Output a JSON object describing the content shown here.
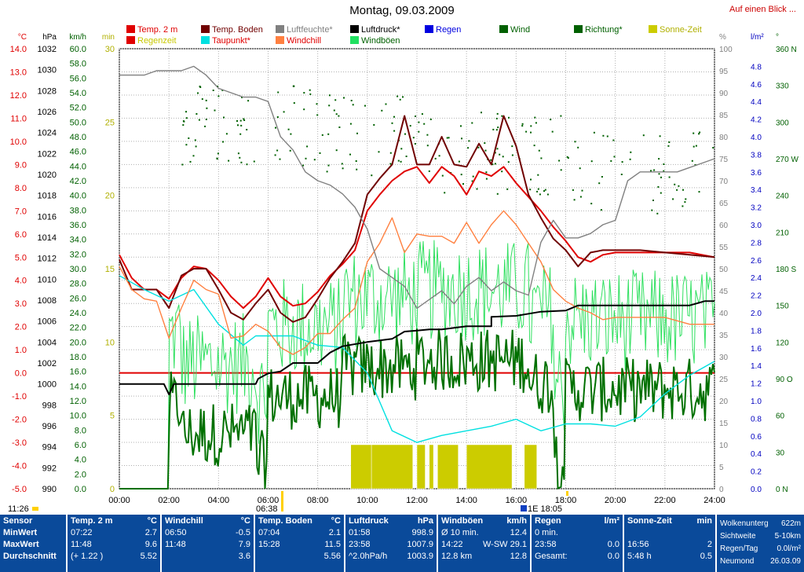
{
  "header": {
    "title": "Montag, 09.03.2009",
    "link": "Auf einen Blick ..."
  },
  "legend": [
    {
      "label": "Temp. 2 m",
      "color": "#e00000",
      "text_color": "#e00000"
    },
    {
      "label": "Temp. Boden",
      "color": "#700000",
      "text_color": "#700000"
    },
    {
      "label": "Luftfeuchte*",
      "color": "#808080",
      "text_color": "#808080"
    },
    {
      "label": "Luftdruck*",
      "color": "#000000",
      "text_color": "#000000"
    },
    {
      "label": "Regen",
      "color": "#0000e0",
      "text_color": "#0000e0"
    },
    {
      "label": "Wind",
      "color": "#006000",
      "text_color": "#006000"
    },
    {
      "label": "Richtung*",
      "color": "#006000",
      "text_color": "#006000"
    },
    {
      "label": "Sonne-Zeit",
      "color": "#cccc00",
      "text_color": "#b0b000"
    },
    {
      "label": "Regenzeit",
      "color": "#e00000",
      "text_color": "#c8c800"
    },
    {
      "label": "Taupunkt*",
      "color": "#00e0e0",
      "text_color": "#e00000"
    },
    {
      "label": "Windchill",
      "color": "#ff8040",
      "text_color": "#e00000"
    },
    {
      "label": "Windböen",
      "color": "#20e060",
      "text_color": "#006000"
    }
  ],
  "chart_data": {
    "type": "line",
    "x_range": [
      "00:00",
      "24:00"
    ],
    "x_ticks": [
      "00:00",
      "02:00",
      "04:00",
      "06:00",
      "08:00",
      "10:00",
      "12:00",
      "14:00",
      "16:00",
      "18:00",
      "20:00",
      "22:00",
      "24:00"
    ],
    "axes": {
      "temp": {
        "unit": "°C",
        "range": [
          -5.0,
          14.0
        ],
        "ticks": [
          "14.0",
          "13.0",
          "12.0",
          "11.0",
          "10.0",
          "9.0",
          "8.0",
          "7.0",
          "6.0",
          "5.0",
          "4.0",
          "3.0",
          "2.0",
          "1.0",
          "0.0",
          "-1.0",
          "-2.0",
          "-3.0",
          "-4.0",
          "-5.0"
        ]
      },
      "pressure": {
        "unit": "hPa",
        "range": [
          990,
          1032
        ],
        "ticks": [
          "1032",
          "1030",
          "1028",
          "1026",
          "1024",
          "1022",
          "1020",
          "1018",
          "1016",
          "1014",
          "1012",
          "1010",
          "1008",
          "1006",
          "1004",
          "1002",
          "1000",
          "998",
          "996",
          "994",
          "992",
          "990"
        ]
      },
      "wind": {
        "unit": "km/h",
        "range": [
          0,
          60
        ],
        "ticks": [
          "60.0",
          "58.0",
          "56.0",
          "54.0",
          "52.0",
          "50.0",
          "48.0",
          "46.0",
          "44.0",
          "42.0",
          "40.0",
          "38.0",
          "36.0",
          "34.0",
          "32.0",
          "30.0",
          "28.0",
          "26.0",
          "24.0",
          "22.0",
          "20.0",
          "18.0",
          "16.0",
          "14.0",
          "12.0",
          "10.0",
          "8.0",
          "6.0",
          "4.0",
          "2.0",
          "0.0"
        ]
      },
      "minutes": {
        "unit": "min",
        "range": [
          0,
          30
        ],
        "ticks": [
          "30",
          "25",
          "20",
          "15",
          "10",
          "5",
          "0"
        ]
      },
      "humidity": {
        "unit": "%",
        "range": [
          0,
          100
        ],
        "ticks": [
          "100",
          "95",
          "90",
          "85",
          "80",
          "75",
          "70",
          "65",
          "60",
          "55",
          "50",
          "45",
          "40",
          "35",
          "30",
          "25",
          "20",
          "15",
          "10",
          "5",
          "0"
        ]
      },
      "rain": {
        "unit": "l/m²",
        "range": [
          0,
          5.0
        ],
        "ticks": [
          "4.8",
          "4.6",
          "4.4",
          "4.2",
          "4.0",
          "3.8",
          "3.6",
          "3.4",
          "3.2",
          "3.0",
          "2.8",
          "2.6",
          "2.4",
          "2.2",
          "2.0",
          "1.8",
          "1.6",
          "1.4",
          "1.2",
          "1.0",
          "0.8",
          "0.6",
          "0.4",
          "0.2",
          "0.0"
        ]
      },
      "direction": {
        "unit": "°",
        "range": [
          0,
          360
        ],
        "ticks": [
          "360 N",
          "330",
          "300",
          "270 W",
          "240",
          "210",
          "180 S",
          "150",
          "120",
          "90 O",
          "60",
          "30",
          "0 N"
        ]
      }
    },
    "series": [
      {
        "name": "Temp. 2 m",
        "axis": "temp",
        "color": "#e00000",
        "x": [
          0,
          0.5,
          1,
          1.5,
          2,
          2.5,
          3,
          3.5,
          4,
          4.5,
          5,
          5.5,
          6,
          6.5,
          7,
          7.5,
          8,
          8.5,
          9,
          9.5,
          10,
          10.5,
          11,
          11.5,
          12,
          12.5,
          13,
          13.5,
          14,
          14.5,
          15,
          15.5,
          16,
          16.5,
          17,
          17.5,
          18,
          18.5,
          19,
          19.5,
          20,
          21,
          22,
          23,
          24
        ],
        "y": [
          5.1,
          4.1,
          3.6,
          3.6,
          3.2,
          4.1,
          4.6,
          4.5,
          4.0,
          3.3,
          2.8,
          3.3,
          4.1,
          3.3,
          2.9,
          3.0,
          3.5,
          4.2,
          4.7,
          5.3,
          7.0,
          7.7,
          8.3,
          8.7,
          8.9,
          8.2,
          8.9,
          8.5,
          7.7,
          8.7,
          8.5,
          8.9,
          8.2,
          7.6,
          7.0,
          6.3,
          5.7,
          5.0,
          4.8,
          5.1,
          5.2,
          5.2,
          5.2,
          5.2,
          5.0
        ]
      },
      {
        "name": "Temp. Boden",
        "axis": "temp",
        "color": "#700000",
        "x": [
          0,
          0.5,
          1,
          1.5,
          2,
          2.5,
          3,
          3.5,
          4,
          4.5,
          5,
          5.5,
          6,
          6.5,
          7,
          7.5,
          8,
          8.5,
          9,
          9.5,
          10,
          10.5,
          11,
          11.5,
          12,
          12.5,
          13,
          13.5,
          14,
          14.5,
          15,
          15.5,
          16,
          16.5,
          17,
          17.5,
          18,
          18.5,
          19,
          19.5,
          20,
          21,
          22,
          23,
          24
        ],
        "y": [
          4.9,
          3.6,
          3.6,
          3.6,
          2.8,
          4.2,
          4.5,
          4.5,
          3.6,
          2.6,
          2.3,
          3.0,
          3.6,
          2.6,
          2.2,
          2.4,
          3.2,
          4.1,
          4.8,
          5.6,
          7.7,
          8.4,
          9.0,
          11.1,
          9.0,
          9.0,
          10.2,
          9.0,
          8.9,
          9.9,
          9.0,
          11.1,
          9.8,
          7.7,
          6.7,
          5.8,
          5.3,
          4.6,
          5.2,
          5.3,
          5.3,
          5.3,
          5.2,
          5.1,
          5.0
        ]
      },
      {
        "name": "Taupunkt*",
        "axis": "temp",
        "color": "#00e0e0",
        "x": [
          0,
          1,
          2,
          3,
          4,
          5,
          5.5,
          6,
          7,
          8,
          9,
          10,
          11,
          12,
          13,
          14,
          15,
          16,
          17,
          18,
          19,
          20,
          21,
          22,
          23,
          24
        ],
        "y": [
          4.2,
          3.6,
          3.1,
          3.6,
          2.1,
          1.2,
          1.6,
          1.6,
          1.6,
          1.2,
          1.1,
          0.0,
          -2.5,
          -3.0,
          -2.7,
          -2.5,
          -2.3,
          -2.0,
          -2.5,
          -2.2,
          -2.2,
          -2.3,
          -1.9,
          -0.9,
          -0.1,
          0.5
        ]
      },
      {
        "name": "Windchill",
        "axis": "temp",
        "color": "#ff8040",
        "x": [
          0,
          0.5,
          1,
          1.5,
          2,
          2.5,
          3,
          3.5,
          4,
          4.5,
          5,
          5.5,
          6,
          6.5,
          7,
          7.5,
          8,
          8.5,
          9,
          9.5,
          10,
          10.5,
          11,
          11.5,
          12,
          12.5,
          13,
          13.5,
          14,
          14.5,
          15,
          15.5,
          16,
          16.5,
          17,
          17.5,
          18,
          18.5,
          19,
          19.5,
          20,
          21,
          22,
          23,
          24
        ],
        "y": [
          4.6,
          3.6,
          3.2,
          3.1,
          1.5,
          2.8,
          4.0,
          3.6,
          3.4,
          1.5,
          1.6,
          2.1,
          1.8,
          1.1,
          0.8,
          1.1,
          1.7,
          1.7,
          2.3,
          2.8,
          4.8,
          5.6,
          6.7,
          5.2,
          6.0,
          5.9,
          5.9,
          5.6,
          6.5,
          5.6,
          6.4,
          7.0,
          6.4,
          5.6,
          4.8,
          3.6,
          3.1,
          2.8,
          2.6,
          2.3,
          2.4,
          2.4,
          2.4,
          2.1,
          2.1
        ]
      },
      {
        "name": "Luftfeuchte*",
        "axis": "humidity",
        "color": "#808080",
        "x": [
          0,
          0.5,
          1,
          1.5,
          2,
          2.5,
          3,
          3.5,
          4,
          4.5,
          5,
          5.5,
          6,
          6.5,
          7,
          7.5,
          8,
          8.5,
          9,
          9.5,
          10,
          10.5,
          11,
          11.5,
          12,
          12.5,
          13,
          13.5,
          14,
          14.5,
          15,
          15.5,
          16,
          16.5,
          17,
          17.5,
          18,
          18.5,
          19,
          19.5,
          20,
          20.5,
          21,
          21.5,
          22,
          22.5,
          23,
          23.5,
          24
        ],
        "y": [
          94,
          94,
          94,
          95,
          95,
          95,
          96,
          94,
          91,
          90,
          89,
          89,
          88,
          80,
          77,
          72,
          70,
          69,
          67,
          64,
          59,
          50,
          48,
          46,
          41,
          43,
          45,
          42,
          46,
          48,
          45,
          47,
          45,
          44,
          56,
          61,
          57,
          57,
          58,
          60,
          61,
          70,
          72,
          72,
          72,
          72,
          73,
          74,
          75
        ]
      },
      {
        "name": "Luftdruck*",
        "axis": "pressure",
        "color": "#000000",
        "x": [
          0,
          1,
          1.8,
          2,
          2.2,
          3,
          4,
          5,
          5.5,
          5.6,
          6,
          6.5,
          7,
          8,
          8.5,
          9,
          10,
          11,
          11.5,
          12,
          12.5,
          13,
          14,
          15,
          15,
          16,
          17,
          18,
          18.5,
          19,
          20,
          21,
          22,
          23,
          23.6,
          24
        ],
        "y": [
          1000,
          1000,
          1000,
          999,
          1000,
          1000,
          1000,
          1000,
          1000,
          1000.5,
          1001,
          1001.2,
          1002,
          1002,
          1003,
          1003.6,
          1004,
          1004.3,
          1005,
          1005.1,
          1005.2,
          1005.2,
          1005.5,
          1005.5,
          1006.4,
          1006.5,
          1006.9,
          1007.0,
          1007.5,
          1007.5,
          1007.5,
          1007.5,
          1007.5,
          1007.5,
          1007.9,
          1007.9
        ]
      }
    ],
    "wind_mean_range_kmh": [
      0,
      30
    ],
    "gust_range_kmh": [
      0,
      40
    ],
    "direction_dots_deg": [
      200,
      330
    ],
    "sun_minutes": [
      {
        "start": "09:20",
        "end": "10:10",
        "value": 3
      },
      {
        "start": "10:10",
        "end": "11:50",
        "value": 3
      },
      {
        "start": "12:00",
        "end": "12:20",
        "value": 3
      },
      {
        "start": "12:30",
        "end": "12:40",
        "value": 3
      },
      {
        "start": "12:50",
        "end": "13:40",
        "value": 3
      },
      {
        "start": "14:00",
        "end": "15:50",
        "value": 3
      },
      {
        "start": "16:20",
        "end": "16:50",
        "value": 3
      }
    ],
    "annotations": {
      "left_bottom": "11:26",
      "sunrise": "06:38",
      "sunset_marker": "1E 18:05"
    }
  },
  "footer": {
    "labels": {
      "sensor": "Sensor",
      "min": "MinWert",
      "max": "MaxWert",
      "avg": "Durchschnitt"
    },
    "temp2m": {
      "title": "Temp. 2 m",
      "unit": "°C",
      "min_time": "07:22",
      "min": "2.7",
      "max_time": "11:48",
      "max": "9.6",
      "avg_note": "(+ 1.22 )",
      "avg": "5.52"
    },
    "windchill": {
      "title": "Windchill",
      "unit": "°C",
      "min_time": "06:50",
      "min": "-0.5",
      "max_time": "11:48",
      "max": "7.9",
      "avg": "3.6"
    },
    "tempboden": {
      "title": "Temp. Boden",
      "unit": "°C",
      "min_time": "07:04",
      "min": "2.1",
      "max_time": "15:28",
      "max": "11.5",
      "avg": "5.56"
    },
    "luftdruck": {
      "title": "Luftdruck",
      "unit": "hPa",
      "min_time": "01:58",
      "min": "998.9",
      "max_time": "23:58",
      "max": "1007.9",
      "avg_note": "^2.0hPa/h",
      "avg": "1003.9"
    },
    "windboeen": {
      "title": "Windböen",
      "unit": "km/h",
      "r1a": "Ø 10 min.",
      "r1b": "12.4",
      "r2a": "14:22",
      "r2m": "W-SW 29.1",
      "r3a": "12.8 km",
      "r3b": "12.8"
    },
    "regen": {
      "title": "Regen",
      "unit": "l/m²",
      "r1a": "0 min.",
      "r1b": "",
      "r2a": "23:58",
      "r2b": "0.0",
      "r3a": "Gesamt:",
      "r3b": "0.0"
    },
    "sonne": {
      "title": "Sonne-Zeit",
      "unit": "min",
      "r2a": "16:56",
      "r2b": "2",
      "r3a": "5:48 h",
      "r3b": "0.5"
    },
    "extra": [
      {
        "label": "Wolkenuntergrenze",
        "value": "622m"
      },
      {
        "label": "Sichtweite",
        "value": "5-10km"
      },
      {
        "label": "Regen/Tag",
        "value": "0.0l/m²"
      },
      {
        "label": "Neumond",
        "value": "26.03.09"
      }
    ],
    "extra_label_short": [
      "Wolkenunterg",
      "Sichtweite",
      "Regen/Tag",
      "Neumond"
    ]
  }
}
